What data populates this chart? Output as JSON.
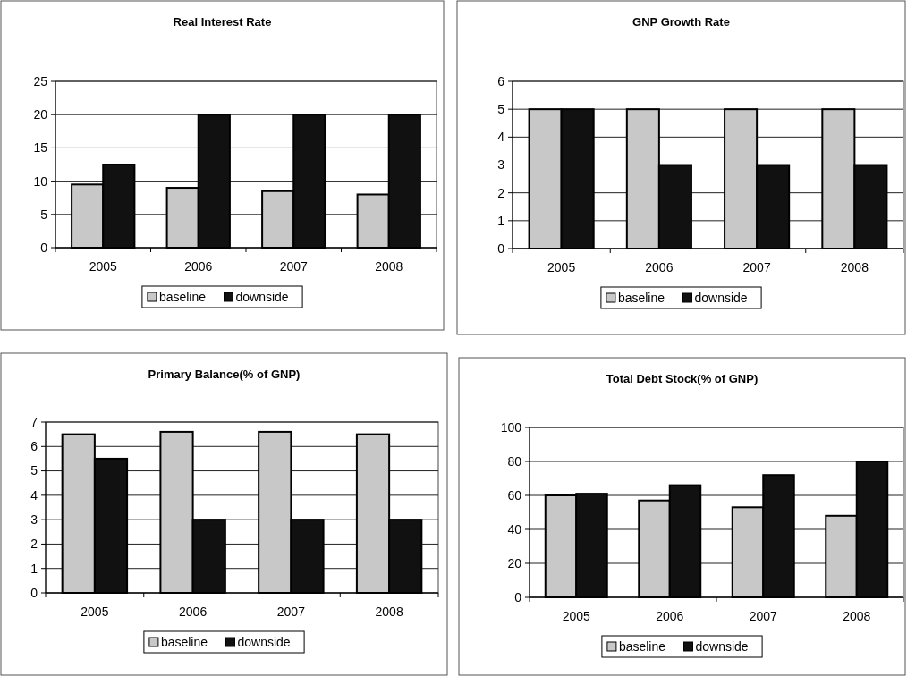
{
  "chart_data": [
    {
      "type": "bar",
      "title": "Real Interest Rate",
      "categories": [
        "2005",
        "2006",
        "2007",
        "2008"
      ],
      "series": [
        {
          "name": "baseline",
          "color": "#c8c8c8",
          "values": [
            9.5,
            9,
            8.5,
            8
          ]
        },
        {
          "name": "downside",
          "color": "#111111",
          "values": [
            12.5,
            20,
            20,
            20
          ]
        }
      ],
      "ylim": [
        0,
        25
      ],
      "yticks": [
        0,
        5,
        10,
        15,
        20,
        25
      ],
      "grid": "y",
      "legend": "bottom"
    },
    {
      "type": "bar",
      "title": "GNP Growth Rate",
      "categories": [
        "2005",
        "2006",
        "2007",
        "2008"
      ],
      "series": [
        {
          "name": "baseline",
          "color": "#c8c8c8",
          "values": [
            5,
            5,
            5,
            5
          ]
        },
        {
          "name": "downside",
          "color": "#111111",
          "values": [
            5,
            3,
            3,
            3
          ]
        }
      ],
      "ylim": [
        0,
        6
      ],
      "yticks": [
        0,
        1,
        2,
        3,
        4,
        5,
        6
      ],
      "grid": "y",
      "legend": "bottom"
    },
    {
      "type": "bar",
      "title": "Primary Balance(% of GNP)",
      "categories": [
        "2005",
        "2006",
        "2007",
        "2008"
      ],
      "series": [
        {
          "name": "baseline",
          "color": "#c8c8c8",
          "values": [
            6.5,
            6.6,
            6.6,
            6.5
          ]
        },
        {
          "name": "downside",
          "color": "#111111",
          "values": [
            5.5,
            3,
            3,
            3
          ]
        }
      ],
      "ylim": [
        0,
        7
      ],
      "yticks": [
        0,
        1,
        2,
        3,
        4,
        5,
        6,
        7
      ],
      "grid": "y",
      "legend": "bottom"
    },
    {
      "type": "bar",
      "title": "Total Debt Stock(% of GNP)",
      "categories": [
        "2005",
        "2006",
        "2007",
        "2008"
      ],
      "series": [
        {
          "name": "baseline",
          "color": "#c8c8c8",
          "values": [
            60,
            57,
            53,
            48
          ]
        },
        {
          "name": "downside",
          "color": "#111111",
          "values": [
            61,
            66,
            72,
            80
          ]
        }
      ],
      "ylim": [
        0,
        100
      ],
      "yticks": [
        0,
        20,
        40,
        60,
        80,
        100
      ],
      "grid": "y",
      "legend": "bottom"
    }
  ]
}
